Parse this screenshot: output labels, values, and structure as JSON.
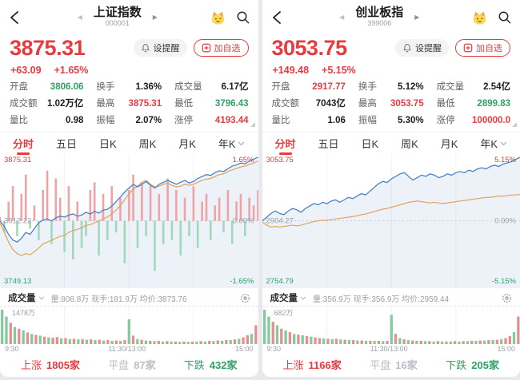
{
  "colors": {
    "red": "#e73b3f",
    "green": "#2fa263",
    "dark": "#1d1d1f",
    "gray": "#9aa0a6",
    "blue_line": "#4a82c4",
    "orange_line": "#e2a259",
    "area": "rgba(74,130,196,0.10)",
    "bar_red": "#efa3a6",
    "bar_green": "#a2d8ba",
    "vol_red": "#e5908e",
    "vol_green": "#84c9a0"
  },
  "icons": {
    "prev": "◀",
    "next": "▶"
  },
  "tabs": [
    {
      "label": "分时",
      "active": true
    },
    {
      "label": "五日",
      "active": false
    },
    {
      "label": "日K",
      "active": false
    },
    {
      "label": "周K",
      "active": false
    },
    {
      "label": "月K",
      "active": false
    },
    {
      "label": "年K",
      "active": false,
      "dropdown": true
    }
  ],
  "panels": [
    {
      "title": "上证指数",
      "code": "000001",
      "price": "3875.31",
      "change": "+63.09",
      "change_pct": "+1.65%",
      "alert_label": "设提醒",
      "watch_label": "加自选",
      "stats": [
        {
          "label": "开盘",
          "value": "3806.06",
          "color": "green"
        },
        {
          "label": "换手",
          "value": "1.36%",
          "color": "dark"
        },
        {
          "label": "成交量",
          "value": "6.17亿",
          "color": "dark"
        },
        {
          "label": "成交额",
          "value": "1.02万亿",
          "color": "dark"
        },
        {
          "label": "最高",
          "value": "3875.31",
          "color": "red"
        },
        {
          "label": "最低",
          "value": "3796.43",
          "color": "green"
        },
        {
          "label": "量比",
          "value": "0.98",
          "color": "dark"
        },
        {
          "label": "振幅",
          "value": "2.07%",
          "color": "dark"
        },
        {
          "label": "涨停",
          "value": "4193.44",
          "color": "red"
        }
      ],
      "chart_labels": {
        "top_left": "3875.31",
        "top_right": "1.65%",
        "mid_left": "3812.22",
        "mid_right": "0.00%",
        "bottom_left": "3749.13",
        "bottom_right": "-1.65%"
      },
      "volume_label": "成交量",
      "volume_info": "量:808.8万 现手:181.9万 均价:3873.76",
      "volume_max": "1478万",
      "time_axis": {
        "open": "9:30",
        "mid": "11:30/13:00",
        "close": "15:00"
      },
      "breadth": {
        "up_label": "上涨",
        "up_value": "1805家",
        "flat_label": "平盘",
        "flat_value": "87家",
        "down_label": "下跌",
        "down_value": "432家"
      }
    },
    {
      "title": "创业板指",
      "code": "399006",
      "price": "3053.75",
      "change": "+149.48",
      "change_pct": "+5.15%",
      "alert_label": "设提醒",
      "watch_label": "加自选",
      "stats": [
        {
          "label": "开盘",
          "value": "2917.77",
          "color": "red"
        },
        {
          "label": "换手",
          "value": "5.12%",
          "color": "dark"
        },
        {
          "label": "成交量",
          "value": "2.54亿",
          "color": "dark"
        },
        {
          "label": "成交额",
          "value": "7043亿",
          "color": "dark"
        },
        {
          "label": "最高",
          "value": "3053.75",
          "color": "red"
        },
        {
          "label": "最低",
          "value": "2899.83",
          "color": "green"
        },
        {
          "label": "量比",
          "value": "1.06",
          "color": "dark"
        },
        {
          "label": "振幅",
          "value": "5.30%",
          "color": "dark"
        },
        {
          "label": "涨停",
          "value": "100000.0",
          "color": "red"
        }
      ],
      "chart_labels": {
        "top_left": "3053.75",
        "top_right": "5.15%",
        "mid_left": "2904.27",
        "mid_right": "0.00%",
        "bottom_left": "2754.79",
        "bottom_right": "-5.15%"
      },
      "volume_label": "成交量",
      "volume_info": "量:356.9万 现手:356.9万 均价:2959.44",
      "volume_max": "682万",
      "time_axis": {
        "open": "9:30",
        "mid": "11:30/13:00",
        "close": "15:00"
      },
      "breadth": {
        "up_label": "上涨",
        "up_value": "1166家",
        "flat_label": "平盘",
        "flat_value": "16家",
        "down_label": "下跌",
        "down_value": "205家"
      }
    }
  ],
  "chart_data": [
    {
      "type": "line",
      "title": "上证指数 分时",
      "x": [
        "9:30",
        "11:30/13:00",
        "15:00"
      ],
      "y_left_labels": [
        "3875.31",
        "3812.22",
        "3749.13"
      ],
      "y_right_labels": [
        "1.65%",
        "0.00%",
        "-1.65%"
      ],
      "prev_close": 3812.22,
      "ylim_pct": [
        -1.65,
        1.65
      ],
      "grid": true,
      "legend": "none",
      "series": [
        {
          "name": "price_pct",
          "color": "#4a82c4",
          "values": [
            0,
            -0.15,
            -0.35,
            -0.5,
            -0.55,
            -0.45,
            -0.3,
            -0.35,
            -0.2,
            -0.05,
            0.02,
            0.05,
            0,
            0.08,
            0.12,
            0.1,
            0.15,
            0.18,
            0.12,
            0.15,
            0.22,
            0.18,
            0.25,
            0.2,
            0.28,
            0.3,
            0.38,
            0.5,
            0.62,
            0.75,
            0.85,
            0.95,
            0.88,
            0.95,
            1.02,
            0.92,
            0.85,
            0.95,
            1,
            1.05,
            1,
            0.95,
            1,
            1.05,
            0.98,
            1.02,
            1.1,
            1.15,
            1.2,
            1.18,
            1.25,
            1.3,
            1.28,
            1.35,
            1.42,
            1.45,
            1.5,
            1.48,
            1.55,
            1.6,
            1.65
          ]
        },
        {
          "name": "avg_pct",
          "color": "#e2a259",
          "values": [
            -0.05,
            -0.3,
            -0.55,
            -0.75,
            -0.85,
            -0.9,
            -0.85,
            -0.88,
            -0.8,
            -0.7,
            -0.6,
            -0.55,
            -0.5,
            -0.45,
            -0.4,
            -0.38,
            -0.3,
            -0.25,
            -0.22,
            -0.18,
            -0.12,
            -0.1,
            -0.05,
            0,
            0.05,
            0.1,
            0.18,
            0.28,
            0.4,
            0.55,
            0.7,
            0.82,
            0.9,
            1,
            1.05,
            0.95,
            0.88,
            0.9,
            0.95,
            0.98,
            0.92,
            0.88,
            0.9,
            0.95,
            0.92,
            0.95,
            1,
            1.05,
            1.08,
            1.1,
            1.15,
            1.2,
            1.22,
            1.28,
            1.32,
            1.36,
            1.4,
            1.42,
            1.46,
            1.5,
            1.55
          ]
        }
      ],
      "delta_bars_pct": [
        0.1,
        -0.3,
        0.5,
        0.9,
        -0.4,
        0.7,
        1.2,
        -0.2,
        0.4,
        -0.5,
        0.8,
        1.3,
        -0.6,
        1.1,
        0.6,
        -0.8,
        0.9,
        -1,
        0.5,
        -0.7,
        -0.4,
        0.8,
        1,
        -0.9,
        0.7,
        -0.5,
        0.9,
        -0.3,
        0.6,
        -1.1,
        0.8,
        1.2,
        -0.7,
        1,
        -0.4,
        0.9,
        -1.3,
        0.7,
        -0.6,
        1.1,
        -0.5,
        0.8,
        -0.9,
        0.6,
        -0.4,
        0.9,
        -0.7,
        0.5,
        0.7,
        -0.5,
        0.4,
        0.6,
        -0.3,
        0.8,
        -0.6,
        0.5,
        0.7,
        -0.4,
        0.6,
        0.4,
        0.8
      ],
      "volume_max_label": "1478万",
      "volume_bars": [
        -1,
        -0.8,
        0.62,
        -0.5,
        0.45,
        -0.4,
        0.34,
        -0.3,
        0.27,
        -0.25,
        0.22,
        -0.2,
        0.19,
        0.21,
        -0.17,
        0.18,
        -0.15,
        0.16,
        -0.14,
        0.15,
        -0.13,
        0.14,
        -0.12,
        0.13,
        -0.11,
        0.12,
        -0.1,
        0.11,
        -0.1,
        0.12,
        -0.72,
        0.25,
        -0.15,
        0.13,
        -0.11,
        0.1,
        -0.09,
        0.1,
        -0.08,
        0.09,
        -0.08,
        0.08,
        -0.07,
        0.08,
        -0.07,
        0.08,
        -0.08,
        0.09,
        -0.08,
        0.1,
        -0.09,
        0.11,
        -0.1,
        0.12,
        -0.12,
        0.14,
        -0.16,
        0.2,
        0.26,
        -0.3,
        0.55
      ]
    },
    {
      "type": "line",
      "title": "创业板指 分时",
      "x": [
        "9:30",
        "11:30/13:00",
        "15:00"
      ],
      "y_left_labels": [
        "3053.75",
        "2904.27",
        "2754.79"
      ],
      "y_right_labels": [
        "5.15%",
        "0.00%",
        "-5.15%"
      ],
      "prev_close": 2904.27,
      "ylim_pct": [
        -5.15,
        5.15
      ],
      "grid": true,
      "legend": "none",
      "series": [
        {
          "name": "price_pct",
          "color": "#4a82c4",
          "values": [
            0,
            0.3,
            0.6,
            0.8,
            0.6,
            0.5,
            0.8,
            1,
            0.9,
            0.7,
            1,
            1.2,
            1.4,
            1.3,
            1.5,
            1.4,
            1.6,
            1.7,
            1.5,
            1.7,
            1.9,
            1.8,
            2,
            2.2,
            2.1,
            2.4,
            2.7,
            3,
            3.2,
            3.1,
            3.4,
            3.6,
            3.8,
            3.9,
            3.6,
            3.3,
            3.5,
            3.7,
            3.6,
            3.8,
            3.7,
            3.5,
            3.6,
            3.8,
            3.7,
            3.9,
            4,
            3.9,
            4.1,
            4,
            4.2,
            4.3,
            4.2,
            4.4,
            4.5,
            4.4,
            4.6,
            4.7,
            4.8,
            5,
            5.15
          ]
        },
        {
          "name": "avg_pct",
          "color": "#e2a259",
          "values": [
            -0.1,
            -0.35,
            -0.5,
            -0.45,
            -0.5,
            -0.45,
            -0.4,
            -0.35,
            -0.4,
            -0.35,
            -0.25,
            -0.15,
            -0.05,
            0,
            0.05,
            0.05,
            0.1,
            0.15,
            0.2,
            0.25,
            0.3,
            0.35,
            0.4,
            0.5,
            0.55,
            0.65,
            0.75,
            0.85,
            0.95,
            1,
            1.1,
            1.2,
            1.3,
            1.4,
            1.5,
            1.55,
            1.6,
            1.55,
            1.5,
            1.45,
            1.5,
            1.45,
            1.4,
            1.45,
            1.5,
            1.55,
            1.6,
            1.65,
            1.7,
            1.75,
            1.8,
            1.85,
            1.9,
            1.9,
            1.95,
            2,
            2,
            2.05,
            2.1,
            2.1,
            2.15
          ]
        }
      ],
      "delta_bars_pct": [],
      "volume_max_label": "682万",
      "volume_bars": [
        -1,
        -0.8,
        0.65,
        -0.55,
        0.45,
        -0.4,
        0.35,
        -0.3,
        0.28,
        -0.26,
        0.24,
        -0.22,
        0.2,
        0.18,
        -0.17,
        0.16,
        -0.15,
        0.16,
        -0.14,
        0.13,
        -0.12,
        0.12,
        -0.11,
        0.11,
        -0.1,
        0.1,
        -0.1,
        0.1,
        -0.09,
        0.1,
        -0.85,
        0.3,
        -0.18,
        0.14,
        -0.12,
        0.11,
        -0.1,
        0.1,
        -0.09,
        0.09,
        -0.08,
        0.09,
        -0.08,
        0.08,
        -0.08,
        0.09,
        -0.08,
        0.09,
        -0.09,
        0.1,
        -0.1,
        0.11,
        -0.11,
        0.12,
        -0.12,
        0.13,
        -0.15,
        0.18,
        0.24,
        -0.35,
        0.8
      ]
    }
  ]
}
